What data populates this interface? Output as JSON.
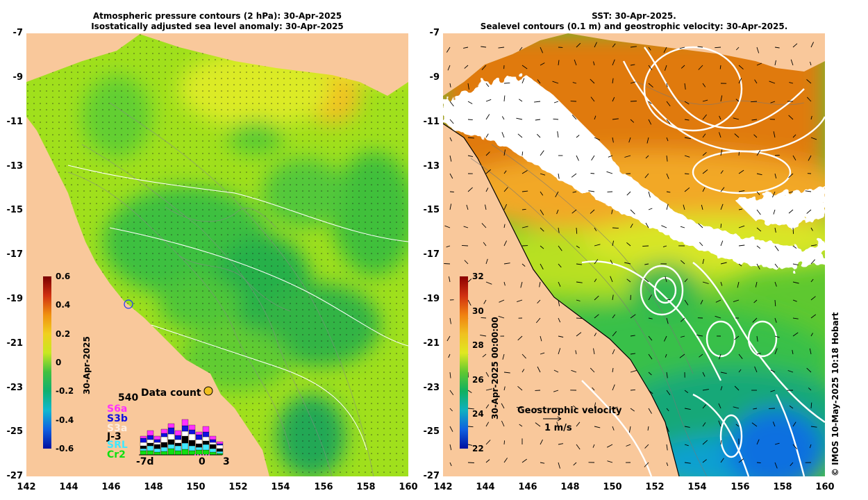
{
  "left_panel": {
    "title_line1": "Atmospheric pressure contours (2 hPa): 30-Apr-2025",
    "title_line2": "Isostatically adjusted sea level anomaly: 30-Apr-2025",
    "colorbar": {
      "ticks": [
        "0.6",
        "0.4",
        "0.2",
        "0",
        "-0.2",
        "-0.4",
        "-0.6"
      ],
      "label": "30-Apr-2025",
      "range": [
        -0.6,
        0.6
      ]
    },
    "data_count": {
      "title": "Data count",
      "max_label": "540",
      "satellites": [
        {
          "name": "S6a",
          "color": "#ff30ff"
        },
        {
          "name": "S3b",
          "color": "#1010e0"
        },
        {
          "name": "S3a",
          "color": "#ffffff"
        },
        {
          "name": "J-3",
          "color": "#000000"
        },
        {
          "name": "SRL",
          "color": "#40e8ff"
        },
        {
          "name": "Cr2",
          "color": "#10e010"
        }
      ],
      "x_labels": [
        "-7d",
        "0",
        "3"
      ]
    }
  },
  "right_panel": {
    "title_line1": "SST: 30-Apr-2025.",
    "title_line2": "Sealevel contours (0.1 m) and geostrophic velocity: 30-Apr-2025.",
    "colorbar": {
      "ticks": [
        "32",
        "30",
        "28",
        "26",
        "24",
        "22"
      ],
      "label": "30-Apr-2025 00:00:00",
      "range": [
        22,
        32
      ]
    },
    "velocity_legend": {
      "title": "Geostrophic velocity",
      "scale": "1 m/s"
    }
  },
  "axes": {
    "lat_ticks": [
      "-7",
      "-9",
      "-11",
      "-13",
      "-15",
      "-17",
      "-19",
      "-21",
      "-23",
      "-25",
      "-27"
    ],
    "lon_ticks": [
      "142",
      "144",
      "146",
      "148",
      "150",
      "152",
      "154",
      "156",
      "158",
      "160"
    ]
  },
  "credit": "© IMOS 10-May-2025 10:18 Hobart",
  "colors": {
    "land": "#f9c89b",
    "sla_green": "#3cc83c",
    "sla_yellow": "#e6ec28",
    "sst_orange": "#e07a10",
    "cloud": "#ffffff"
  }
}
